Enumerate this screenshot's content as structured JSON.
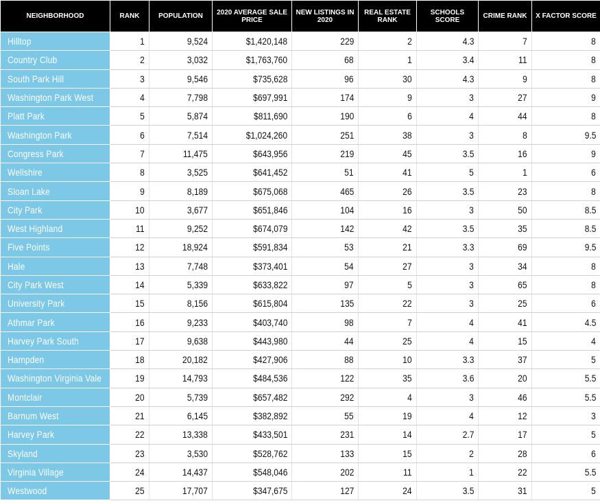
{
  "headers": [
    "NEIGHBORHOOD",
    "RANK",
    "POPULATION",
    "2020 AVERAGE SALE PRICE",
    "NEW LISTINGS IN 2020",
    "REAL ESTATE RANK",
    "SCHOOLS SCORE",
    "CRIME RANK",
    "X FACTOR SCORE"
  ],
  "rows": [
    [
      "Hilltop",
      "1",
      "9,524",
      "$1,420,148",
      "229",
      "2",
      "4.3",
      "7",
      "8"
    ],
    [
      "Country Club",
      "2",
      "3,032",
      "$1,763,760",
      "68",
      "1",
      "3.4",
      "11",
      "8"
    ],
    [
      "South Park Hill",
      "3",
      "9,546",
      "$735,628",
      "96",
      "30",
      "4.3",
      "9",
      "8"
    ],
    [
      "Washington Park West",
      "4",
      "7,798",
      "$697,991",
      "174",
      "9",
      "3",
      "27",
      "9"
    ],
    [
      "Platt Park",
      "5",
      "5,874",
      "$811,690",
      "190",
      "6",
      "4",
      "44",
      "8"
    ],
    [
      "Washington Park",
      "6",
      "7,514",
      "$1,024,260",
      "251",
      "38",
      "3",
      "8",
      "9.5"
    ],
    [
      "Congress Park",
      "7",
      "11,475",
      "$643,956",
      "219",
      "45",
      "3.5",
      "16",
      "9"
    ],
    [
      "Wellshire",
      "8",
      "3,525",
      "$641,452",
      "51",
      "41",
      "5",
      "1",
      "6"
    ],
    [
      "Sloan Lake",
      "9",
      "8,189",
      "$675,068",
      "465",
      "26",
      "3.5",
      "23",
      "8"
    ],
    [
      "City Park",
      "10",
      "3,677",
      "$651,846",
      "104",
      "16",
      "3",
      "50",
      "8.5"
    ],
    [
      "West Highland",
      "11",
      "9,252",
      "$674,079",
      "142",
      "42",
      "3.5",
      "35",
      "8.5"
    ],
    [
      "Five Points",
      "12",
      "18,924",
      "$591,834",
      "53",
      "21",
      "3.3",
      "69",
      "9.5"
    ],
    [
      "Hale",
      "13",
      "7,748",
      "$373,401",
      "54",
      "27",
      "3",
      "34",
      "8"
    ],
    [
      "City Park West",
      "14",
      "5,339",
      "$633,822",
      "97",
      "5",
      "3",
      "65",
      "8"
    ],
    [
      "University Park",
      "15",
      "8,156",
      "$615,804",
      "135",
      "22",
      "3",
      "25",
      "6"
    ],
    [
      "Athmar Park",
      "16",
      "9,233",
      "$403,740",
      "98",
      "7",
      "4",
      "41",
      "4.5"
    ],
    [
      "Harvey Park South",
      "17",
      "9,638",
      "$443,980",
      "44",
      "25",
      "4",
      "15",
      "4"
    ],
    [
      "Hampden",
      "18",
      "20,182",
      "$427,906",
      "88",
      "10",
      "3.3",
      "37",
      "5"
    ],
    [
      "Washington Virginia Vale",
      "19",
      "14,793",
      "$484,536",
      "122",
      "35",
      "3.6",
      "20",
      "5.5"
    ],
    [
      "Montclair",
      "20",
      "5,739",
      "$657,482",
      "292",
      "4",
      "3",
      "46",
      "5.5"
    ],
    [
      "Barnum West",
      "21",
      "6,145",
      "$382,892",
      "55",
      "19",
      "4",
      "12",
      "3"
    ],
    [
      "Harvey Park",
      "22",
      "13,338",
      "$433,501",
      "231",
      "14",
      "2.7",
      "17",
      "5"
    ],
    [
      "Skyland",
      "23",
      "3,530",
      "$528,762",
      "133",
      "15",
      "2",
      "28",
      "6"
    ],
    [
      "Virginia Village",
      "24",
      "14,437",
      "$548,046",
      "202",
      "11",
      "1",
      "22",
      "5.5"
    ],
    [
      "Westwood",
      "25",
      "17,707",
      "$347,675",
      "127",
      "24",
      "3.5",
      "31",
      "5"
    ]
  ],
  "colors": {
    "header_bg": "#000000",
    "header_text": "#ffffff",
    "name_cell_bg": "#7cc8e6",
    "name_cell_text": "#ffffff"
  }
}
